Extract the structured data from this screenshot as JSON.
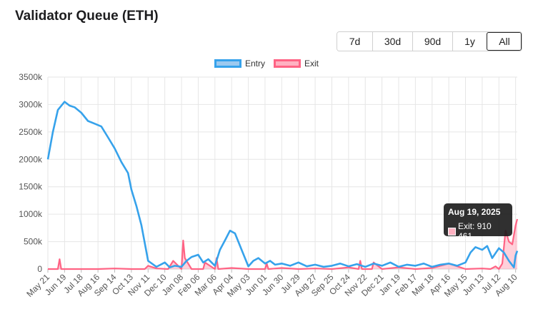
{
  "title": "Validator Queue (ETH)",
  "range_buttons": [
    {
      "label": "7d",
      "active": false
    },
    {
      "label": "30d",
      "active": false
    },
    {
      "label": "90d",
      "active": false
    },
    {
      "label": "1y",
      "active": false
    },
    {
      "label": "All",
      "active": true
    }
  ],
  "tooltip": {
    "title": "Aug 19, 2025",
    "label": "Exit: 910 461"
  },
  "colors": {
    "entry_line": "#36a2eb",
    "entry_fill": "#9cc9ef",
    "exit_line": "#ff6384",
    "exit_fill": "#ffb1c1",
    "grid": "#e6e6e6"
  },
  "chart_data": {
    "type": "line",
    "xlabel": "",
    "ylabel": "",
    "ylim": [
      0,
      3500000
    ],
    "yticks": [
      "0",
      "500k",
      "1000k",
      "1500k",
      "2000k",
      "2500k",
      "3000k",
      "3500k"
    ],
    "xticks": [
      "May 21",
      "Jun 19",
      "Jul 18",
      "Aug 16",
      "Sep 14",
      "Oct 13",
      "Nov 11",
      "Dec 10",
      "Jan 08",
      "Feb 06",
      "Mar 06",
      "Apr 04",
      "May 03",
      "Jun 01",
      "Jun 30",
      "Jul 29",
      "Aug 27",
      "Sep 25",
      "Oct 24",
      "Nov 22",
      "Dec 21",
      "Jan 19",
      "Feb 17",
      "Mar 18",
      "Apr 16",
      "May 15",
      "Jun 13",
      "Jul 12",
      "Aug 10"
    ],
    "legend": {
      "position": "top",
      "entries": [
        "Entry",
        "Exit"
      ]
    },
    "grid": true,
    "series": [
      {
        "name": "Entry",
        "x": [
          0,
          0.3,
          0.6,
          1.0,
          1.3,
          1.6,
          2.0,
          2.4,
          2.8,
          3.2,
          3.6,
          4.0,
          4.4,
          4.8,
          5.0,
          5.3,
          5.6,
          6.0,
          6.5,
          7.0,
          7.3,
          7.6,
          8.0,
          8.3,
          8.6,
          9.0,
          9.3,
          9.6,
          10.0,
          10.3,
          10.6,
          10.9,
          11.2,
          11.6,
          12.0,
          12.3,
          12.6,
          13.0,
          13.3,
          13.6,
          14.0,
          14.5,
          15.0,
          15.5,
          16.0,
          16.5,
          17.0,
          17.5,
          18.0,
          18.5,
          19.0,
          19.5,
          20.0,
          20.5,
          21.0,
          21.5,
          22.0,
          22.5,
          23.0,
          23.5,
          24.0,
          24.5,
          25.0,
          25.3,
          25.6,
          26.0,
          26.3,
          26.6,
          27.0,
          27.3,
          27.6,
          27.9,
          28.0,
          28.1
        ],
        "y": [
          2000000,
          2500000,
          2900000,
          3050000,
          2980000,
          2950000,
          2850000,
          2700000,
          2650000,
          2600000,
          2400000,
          2200000,
          1950000,
          1750000,
          1450000,
          1150000,
          800000,
          150000,
          40000,
          120000,
          30000,
          60000,
          40000,
          150000,
          220000,
          260000,
          120000,
          180000,
          60000,
          350000,
          520000,
          700000,
          650000,
          350000,
          50000,
          150000,
          200000,
          100000,
          150000,
          80000,
          100000,
          60000,
          120000,
          50000,
          80000,
          40000,
          60000,
          100000,
          50000,
          90000,
          40000,
          100000,
          60000,
          120000,
          40000,
          80000,
          60000,
          100000,
          40000,
          80000,
          100000,
          60000,
          120000,
          300000,
          400000,
          350000,
          420000,
          200000,
          380000,
          300000,
          150000,
          30000,
          250000,
          330000
        ]
      },
      {
        "name": "Exit",
        "x": [
          0,
          0.6,
          0.7,
          0.8,
          2.0,
          3.0,
          4.0,
          5.0,
          5.8,
          6.0,
          6.5,
          7.2,
          7.5,
          8.0,
          8.1,
          8.2,
          8.6,
          9.3,
          9.4,
          10.0,
          10.1,
          10.2,
          11.0,
          12.0,
          13.0,
          13.1,
          13.2,
          14.0,
          15.0,
          16.0,
          17.0,
          18.0,
          18.6,
          18.7,
          18.8,
          19.4,
          19.5,
          20.0,
          21.0,
          22.0,
          23.0,
          24.0,
          25.0,
          26.0,
          26.5,
          26.8,
          27.0,
          27.2,
          27.4,
          27.6,
          27.8,
          28.0,
          28.1
        ],
        "y": [
          0,
          0,
          180000,
          0,
          0,
          0,
          10000,
          0,
          0,
          60000,
          10000,
          0,
          150000,
          0,
          520000,
          200000,
          0,
          0,
          120000,
          0,
          200000,
          0,
          20000,
          0,
          0,
          100000,
          0,
          20000,
          0,
          10000,
          0,
          30000,
          0,
          150000,
          0,
          0,
          120000,
          0,
          30000,
          0,
          20000,
          100000,
          0,
          10000,
          0,
          50000,
          0,
          100000,
          700000,
          500000,
          450000,
          800000,
          910461
        ]
      }
    ]
  }
}
